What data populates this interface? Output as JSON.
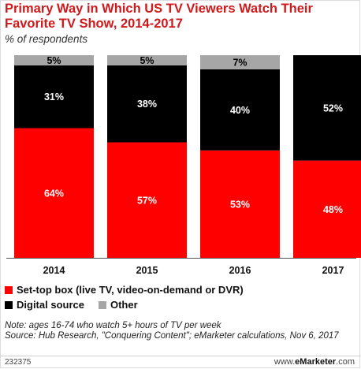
{
  "header": {
    "title": "Primary Way in Which US TV Viewers Watch Their Favorite TV Show, 2014-2017",
    "subtitle": "% of respondents"
  },
  "colors": {
    "settop": "#ff0000",
    "digital": "#000000",
    "other": "#a6a6a6"
  },
  "chart_data": {
    "type": "bar",
    "stacked": true,
    "categories": [
      "2014",
      "2015",
      "2016",
      "2017"
    ],
    "ylim": [
      0,
      100
    ],
    "grid": false,
    "legend_position": "bottom-left",
    "series": [
      {
        "name": "Set-top box (live TV, video-on-demand or DVR)",
        "values": [
          64,
          57,
          53,
          48
        ],
        "labels": [
          "64%",
          "57%",
          "53%",
          "48%"
        ],
        "color": "#ff0000"
      },
      {
        "name": "Digital source",
        "values": [
          31,
          38,
          40,
          52
        ],
        "labels": [
          "31%",
          "38%",
          "40%",
          "52%"
        ],
        "color": "#000000"
      },
      {
        "name": "Other",
        "values": [
          5,
          5,
          7,
          0
        ],
        "labels": [
          "5%",
          "5%",
          "7%",
          ""
        ],
        "color": "#a6a6a6"
      }
    ]
  },
  "legend": {
    "settop": "Set-top box (live TV, video-on-demand or DVR)",
    "digital": "Digital source",
    "other": "Other"
  },
  "notes": {
    "note": "Note: ages 16-74 who watch 5+ hours of TV per week",
    "source": "Source: Hub Research, \"Conquering Content\"; eMarketer calculations, Nov 6, 2017"
  },
  "footer": {
    "id": "232375",
    "site_prefix": "www.",
    "brand": "eMarketer",
    "site_suffix": ".com"
  }
}
